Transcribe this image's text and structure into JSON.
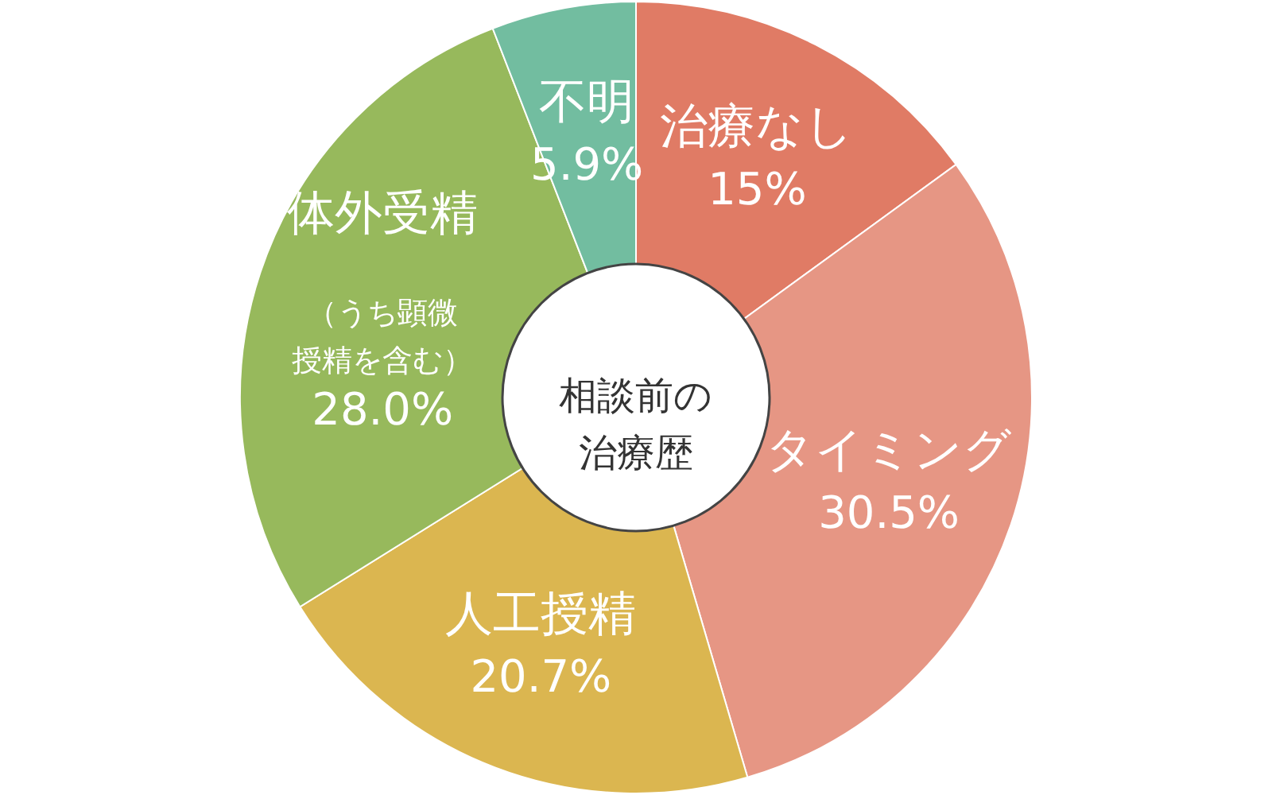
{
  "chart_data": {
    "type": "donut",
    "title": "相談前の治療歴",
    "categories": [
      "治療なし",
      "タイミング",
      "人工授精",
      "体外受精",
      "不明"
    ],
    "values": [
      15,
      30.5,
      20.7,
      28.0,
      5.9
    ],
    "colors": [
      "#e07b65",
      "#e69684",
      "#dbb650",
      "#97b95c",
      "#72bda0"
    ],
    "value_labels": [
      "15%",
      "30.5%",
      "20.7%",
      "28.0%",
      "5.9%"
    ],
    "annotations": [
      {
        "text": "（うち顕微授精を含む）",
        "x": "体外受精"
      }
    ]
  }
}
